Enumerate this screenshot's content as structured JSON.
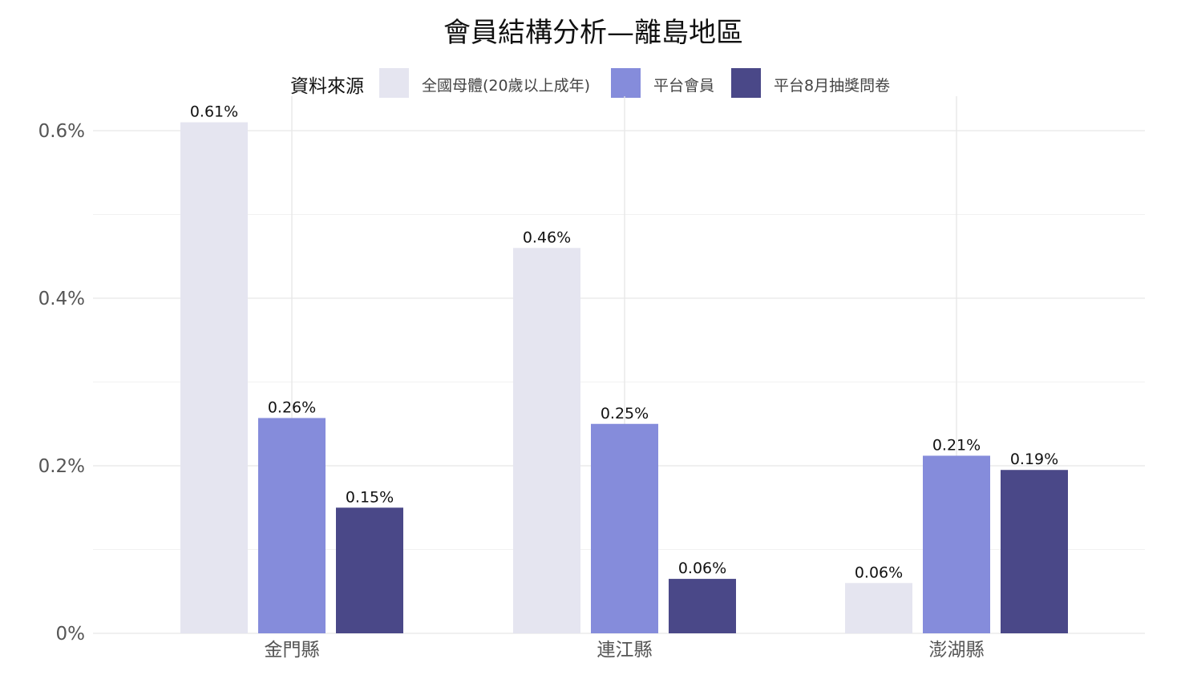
{
  "chart_data": {
    "type": "bar",
    "title": "會員結構分析—離島地區",
    "xlabel": "",
    "ylabel": "",
    "categories": [
      "金門縣",
      "連江縣",
      "澎湖縣"
    ],
    "series": [
      {
        "name": "全國母體(20歲以上成年)",
        "color": "#e5e5f0",
        "values": [
          0.0061,
          0.0046,
          0.0006
        ],
        "labels": [
          "0.61%",
          "0.46%",
          "0.06%"
        ]
      },
      {
        "name": "平台會員",
        "color": "#858cdb",
        "values": [
          0.00257,
          0.0025,
          0.00212
        ],
        "labels": [
          "0.26%",
          "0.25%",
          "0.21%"
        ]
      },
      {
        "name": "平台8月抽獎問卷",
        "color": "#4a4888",
        "values": [
          0.0015,
          0.00065,
          0.00195
        ],
        "labels": [
          "0.15%",
          "0.06%",
          "0.19%"
        ]
      }
    ],
    "ylim": [
      0,
      0.0063
    ],
    "yticks": [
      0,
      0.002,
      0.004,
      0.006
    ],
    "ytick_labels": [
      "0%",
      "0.2%",
      "0.4%",
      "0.6%"
    ],
    "legend": {
      "title": "資料來源",
      "position": "top"
    },
    "grid": true
  }
}
